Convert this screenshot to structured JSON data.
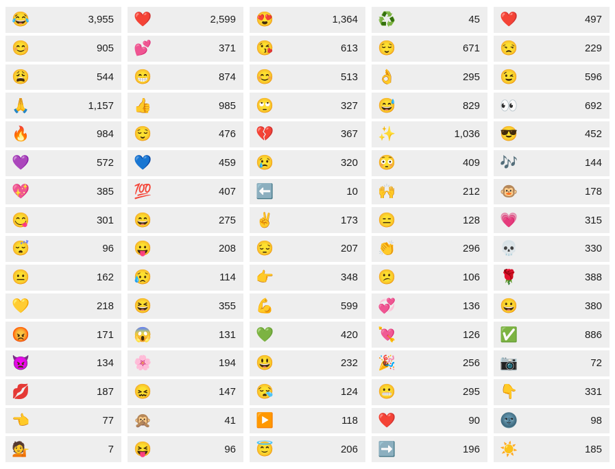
{
  "page": {
    "background_color": "#ffffff",
    "cell_background_color": "#eeeeee",
    "count_text_color": "#1c1c1c"
  },
  "grid": {
    "columns": 5,
    "rows": 16,
    "cells": [
      {
        "emoji": "😂",
        "name": "face-with-tears-of-joy",
        "count": "3,955"
      },
      {
        "emoji": "❤️",
        "name": "red-heart",
        "count": "2,599"
      },
      {
        "emoji": "😍",
        "name": "smiling-face-with-heart-eyes",
        "count": "1,364"
      },
      {
        "emoji": "♻️",
        "name": "recycling-symbol",
        "count": "45"
      },
      {
        "emoji": "❤️",
        "name": "red-heart",
        "count": "497"
      },
      {
        "emoji": "😊",
        "name": "smiling-face-with-smiling-eyes",
        "count": "905"
      },
      {
        "emoji": "💕",
        "name": "two-hearts",
        "count": "371"
      },
      {
        "emoji": "😘",
        "name": "face-blowing-a-kiss",
        "count": "613"
      },
      {
        "emoji": "😌",
        "name": "relieved-face",
        "count": "671"
      },
      {
        "emoji": "😒",
        "name": "unamused-face",
        "count": "229"
      },
      {
        "emoji": "😩",
        "name": "weary-face",
        "count": "544"
      },
      {
        "emoji": "😁",
        "name": "beaming-face-with-smiling-eyes",
        "count": "874"
      },
      {
        "emoji": "😊",
        "name": "smiling-face-with-smiling-eyes",
        "count": "513"
      },
      {
        "emoji": "👌",
        "name": "ok-hand",
        "count": "295"
      },
      {
        "emoji": "😉",
        "name": "winking-face",
        "count": "596"
      },
      {
        "emoji": "🙏",
        "name": "folded-hands",
        "count": "1,157"
      },
      {
        "emoji": "👍",
        "name": "thumbs-up",
        "count": "985"
      },
      {
        "emoji": "🙄",
        "name": "face-with-rolling-eyes",
        "count": "327"
      },
      {
        "emoji": "😅",
        "name": "grinning-face-with-sweat",
        "count": "829"
      },
      {
        "emoji": "👀",
        "name": "eyes",
        "count": "692"
      },
      {
        "emoji": "🔥",
        "name": "fire",
        "count": "984"
      },
      {
        "emoji": "😌",
        "name": "relieved-face",
        "count": "476"
      },
      {
        "emoji": "💔",
        "name": "broken-heart",
        "count": "367"
      },
      {
        "emoji": "✨",
        "name": "sparkles",
        "count": "1,036"
      },
      {
        "emoji": "😎",
        "name": "smiling-face-with-sunglasses",
        "count": "452"
      },
      {
        "emoji": "💜",
        "name": "purple-heart",
        "count": "572"
      },
      {
        "emoji": "💙",
        "name": "blue-heart",
        "count": "459"
      },
      {
        "emoji": "😢",
        "name": "crying-face",
        "count": "320"
      },
      {
        "emoji": "😳",
        "name": "flushed-face",
        "count": "409"
      },
      {
        "emoji": "🎶",
        "name": "musical-notes",
        "count": "144"
      },
      {
        "emoji": "💖",
        "name": "sparkling-heart",
        "count": "385"
      },
      {
        "emoji": "💯",
        "name": "hundred-points",
        "count": "407"
      },
      {
        "emoji": "⬅️",
        "name": "left-arrow",
        "count": "10"
      },
      {
        "emoji": "🙌",
        "name": "raising-hands",
        "count": "212"
      },
      {
        "emoji": "🐵",
        "name": "monkey-face",
        "count": "178"
      },
      {
        "emoji": "😋",
        "name": "face-savoring-food",
        "count": "301"
      },
      {
        "emoji": "😄",
        "name": "grinning-face-with-smiling-eyes",
        "count": "275"
      },
      {
        "emoji": "✌️",
        "name": "victory-hand",
        "count": "173"
      },
      {
        "emoji": "😑",
        "name": "expressionless-face",
        "count": "128"
      },
      {
        "emoji": "💗",
        "name": "growing-heart",
        "count": "315"
      },
      {
        "emoji": "😴",
        "name": "sleeping-face",
        "count": "96"
      },
      {
        "emoji": "😛",
        "name": "face-with-tongue",
        "count": "208"
      },
      {
        "emoji": "😔",
        "name": "pensive-face",
        "count": "207"
      },
      {
        "emoji": "👏",
        "name": "clapping-hands",
        "count": "296"
      },
      {
        "emoji": "💀",
        "name": "skull",
        "count": "330"
      },
      {
        "emoji": "😐",
        "name": "neutral-face",
        "count": "162"
      },
      {
        "emoji": "😥",
        "name": "sad-but-relieved-face",
        "count": "114"
      },
      {
        "emoji": "👉",
        "name": "backhand-index-pointing-right",
        "count": "348"
      },
      {
        "emoji": "😕",
        "name": "confused-face",
        "count": "106"
      },
      {
        "emoji": "🌹",
        "name": "rose",
        "count": "388"
      },
      {
        "emoji": "💛",
        "name": "yellow-heart",
        "count": "218"
      },
      {
        "emoji": "😆",
        "name": "grinning-squinting-face",
        "count": "355"
      },
      {
        "emoji": "💪",
        "name": "flexed-biceps",
        "count": "599"
      },
      {
        "emoji": "💞",
        "name": "revolving-hearts",
        "count": "136"
      },
      {
        "emoji": "😀",
        "name": "grinning-face",
        "count": "380"
      },
      {
        "emoji": "😡",
        "name": "pouting-face",
        "count": "171"
      },
      {
        "emoji": "😱",
        "name": "face-screaming-in-fear",
        "count": "131"
      },
      {
        "emoji": "💚",
        "name": "green-heart",
        "count": "420"
      },
      {
        "emoji": "💘",
        "name": "heart-with-arrow",
        "count": "126"
      },
      {
        "emoji": "✅",
        "name": "check-mark-button",
        "count": "886"
      },
      {
        "emoji": "👿",
        "name": "angry-face-with-horns",
        "count": "134"
      },
      {
        "emoji": "🌸",
        "name": "cherry-blossom",
        "count": "194"
      },
      {
        "emoji": "😃",
        "name": "grinning-face-with-big-eyes",
        "count": "232"
      },
      {
        "emoji": "🎉",
        "name": "party-popper",
        "count": "256"
      },
      {
        "emoji": "📷",
        "name": "camera",
        "count": "72"
      },
      {
        "emoji": "💋",
        "name": "kiss-mark",
        "count": "187"
      },
      {
        "emoji": "😖",
        "name": "confounded-face",
        "count": "147"
      },
      {
        "emoji": "😪",
        "name": "sleepy-face",
        "count": "124"
      },
      {
        "emoji": "😬",
        "name": "grimacing-face",
        "count": "295"
      },
      {
        "emoji": "👇",
        "name": "backhand-index-pointing-down",
        "count": "331"
      },
      {
        "emoji": "👈",
        "name": "backhand-index-pointing-left",
        "count": "77"
      },
      {
        "emoji": "🙊",
        "name": "speak-no-evil-monkey",
        "count": "41"
      },
      {
        "emoji": "▶️",
        "name": "play-button",
        "count": "118"
      },
      {
        "emoji": "❤️",
        "name": "red-heart",
        "count": "90"
      },
      {
        "emoji": "🌚",
        "name": "new-moon-face",
        "count": "98"
      },
      {
        "emoji": "💁",
        "name": "person-tipping-hand",
        "count": "7"
      },
      {
        "emoji": "😝",
        "name": "squinting-face-with-tongue",
        "count": "96"
      },
      {
        "emoji": "😇",
        "name": "smiling-face-with-halo",
        "count": "206"
      },
      {
        "emoji": "➡️",
        "name": "right-arrow",
        "count": "196"
      },
      {
        "emoji": "☀️",
        "name": "sun",
        "count": "185"
      }
    ]
  }
}
